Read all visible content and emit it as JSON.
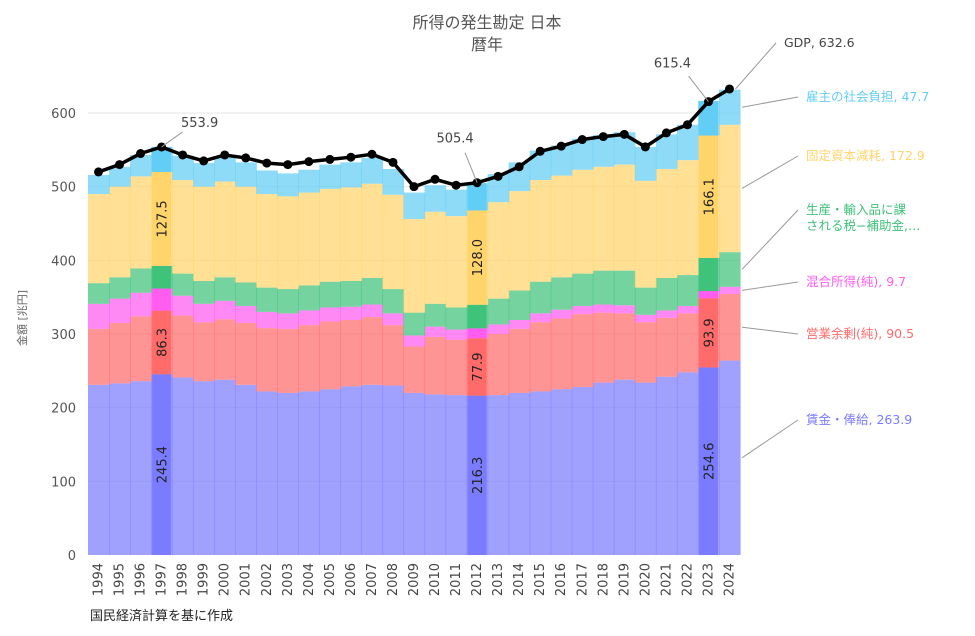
{
  "chart_data": {
    "type": "area",
    "title": "所得の発生勘定 日本",
    "subtitle": "暦年",
    "ylabel": "金額 [兆円]",
    "xlabel": "",
    "source_note": "国民経済計算を基に作成",
    "ylim": [
      0,
      650
    ],
    "yticks": [
      0,
      100,
      200,
      300,
      400,
      500,
      600
    ],
    "grid": true,
    "x": [
      "1994",
      "1995",
      "1996",
      "1997",
      "1998",
      "1999",
      "2000",
      "2001",
      "2002",
      "2003",
      "2004",
      "2005",
      "2006",
      "2007",
      "2008",
      "2009",
      "2010",
      "2011",
      "2012",
      "2013",
      "2014",
      "2015",
      "2016",
      "2017",
      "2018",
      "2019",
      "2020",
      "2021",
      "2022",
      "2023",
      "2024"
    ],
    "highlight_years": [
      "1997",
      "2012",
      "2023"
    ],
    "series": [
      {
        "name": "賃金・俸給",
        "color": "#7b7bff",
        "values": [
          231,
          233,
          236,
          245.4,
          241,
          236,
          238,
          231,
          222,
          220,
          222,
          225,
          229,
          231,
          230,
          220,
          218,
          217,
          216.3,
          217,
          220,
          222,
          225,
          228,
          234,
          238,
          234,
          242,
          248,
          254.6,
          263.9
        ]
      },
      {
        "name": "営業余剰(純)",
        "color": "#ff6b6b",
        "values": [
          76,
          82,
          88,
          86.3,
          84,
          80,
          82,
          84,
          86,
          87,
          90,
          92,
          90,
          92,
          82,
          63,
          78,
          75,
          77.9,
          83,
          87,
          94,
          96,
          99,
          95,
          90,
          82,
          80,
          80,
          93.9,
          90.5
        ]
      },
      {
        "name": "混合所得(純)",
        "color": "#ff5cf0",
        "values": [
          34,
          33,
          32,
          30,
          27,
          25,
          25,
          23,
          22,
          21,
          20,
          19,
          18,
          17,
          16,
          15,
          14,
          14,
          13.5,
          13,
          12,
          12,
          12,
          11,
          11,
          11,
          10,
          10,
          10,
          9.8,
          9.7
        ]
      },
      {
        "name": "生産・輸入品に課される税−補助金,…",
        "color": "#3fc27a",
        "values": [
          28,
          29,
          33,
          30.8,
          30,
          31,
          32,
          32,
          33,
          33,
          34,
          35,
          35,
          36,
          33,
          31,
          31,
          30,
          32,
          35,
          40,
          43,
          44,
          44,
          46,
          47,
          37,
          44,
          42,
          45,
          47
        ]
      },
      {
        "name": "固定資本減耗",
        "color": "#ffd46b",
        "values": [
          121,
          123,
          125,
          127.5,
          127,
          128,
          130,
          130,
          127,
          126,
          126,
          126,
          127,
          128,
          128,
          127,
          125,
          124,
          128.0,
          131,
          135,
          138,
          138,
          141,
          141,
          144,
          145,
          148,
          156,
          166.1,
          172.9
        ]
      },
      {
        "name": "雇主の社会負担",
        "color": "#62cdf5",
        "values": [
          26,
          27,
          29,
          34,
          33,
          32,
          34,
          33,
          32,
          31,
          31,
          33,
          34,
          35,
          35,
          36,
          36,
          36,
          37,
          38,
          39,
          40,
          41,
          42,
          43,
          44,
          46,
          47,
          48,
          47.0,
          47.7
        ]
      }
    ],
    "gdp": {
      "name": "GDP",
      "color": "#000000",
      "values": [
        520,
        530,
        545,
        553.9,
        543,
        535,
        543,
        539,
        532,
        530,
        534,
        537,
        540,
        544,
        533,
        500,
        510,
        502,
        505.4,
        514,
        527,
        548,
        555,
        564,
        568,
        571,
        554,
        573,
        584,
        615.4,
        632.6
      ]
    },
    "point_labels": [
      {
        "series": "GDP",
        "year": "1997",
        "text": "553.9"
      },
      {
        "series": "GDP",
        "year": "2012",
        "text": "505.4"
      },
      {
        "series": "GDP",
        "year": "2023",
        "text": "615.4"
      }
    ],
    "bar_value_labels": [
      {
        "year": "1997",
        "series": "賃金・俸給",
        "text": "245.4"
      },
      {
        "year": "1997",
        "series": "営業余剰(純)",
        "text": "86.3"
      },
      {
        "year": "1997",
        "series": "固定資本減耗",
        "text": "127.5"
      },
      {
        "year": "2012",
        "series": "賃金・俸給",
        "text": "216.3"
      },
      {
        "year": "2012",
        "series": "営業余剰(純)",
        "text": "77.9"
      },
      {
        "year": "2012",
        "series": "固定資本減耗",
        "text": "128.0"
      },
      {
        "year": "2023",
        "series": "賃金・俸給",
        "text": "254.6"
      },
      {
        "year": "2023",
        "series": "営業余剰(純)",
        "text": "93.9"
      },
      {
        "year": "2023",
        "series": "固定資本減耗",
        "text": "166.1"
      }
    ],
    "end_labels": [
      {
        "series": "GDP",
        "text": "GDP, 632.6"
      },
      {
        "series": "雇主の社会負担",
        "text": "雇主の社会負担, 47.7"
      },
      {
        "series": "固定資本減耗",
        "text": "固定資本減耗, 172.9"
      },
      {
        "series": "生産・輸入品に課される税−補助金,…",
        "text": "生産・輸入品に課\nされる税−補助金,…"
      },
      {
        "series": "混合所得(純)",
        "text": "混合所得(純), 9.7"
      },
      {
        "series": "営業余剰(純)",
        "text": "営業余剰(純), 90.5"
      },
      {
        "series": "賃金・俸給",
        "text": "賃金・俸給, 263.9"
      }
    ]
  }
}
